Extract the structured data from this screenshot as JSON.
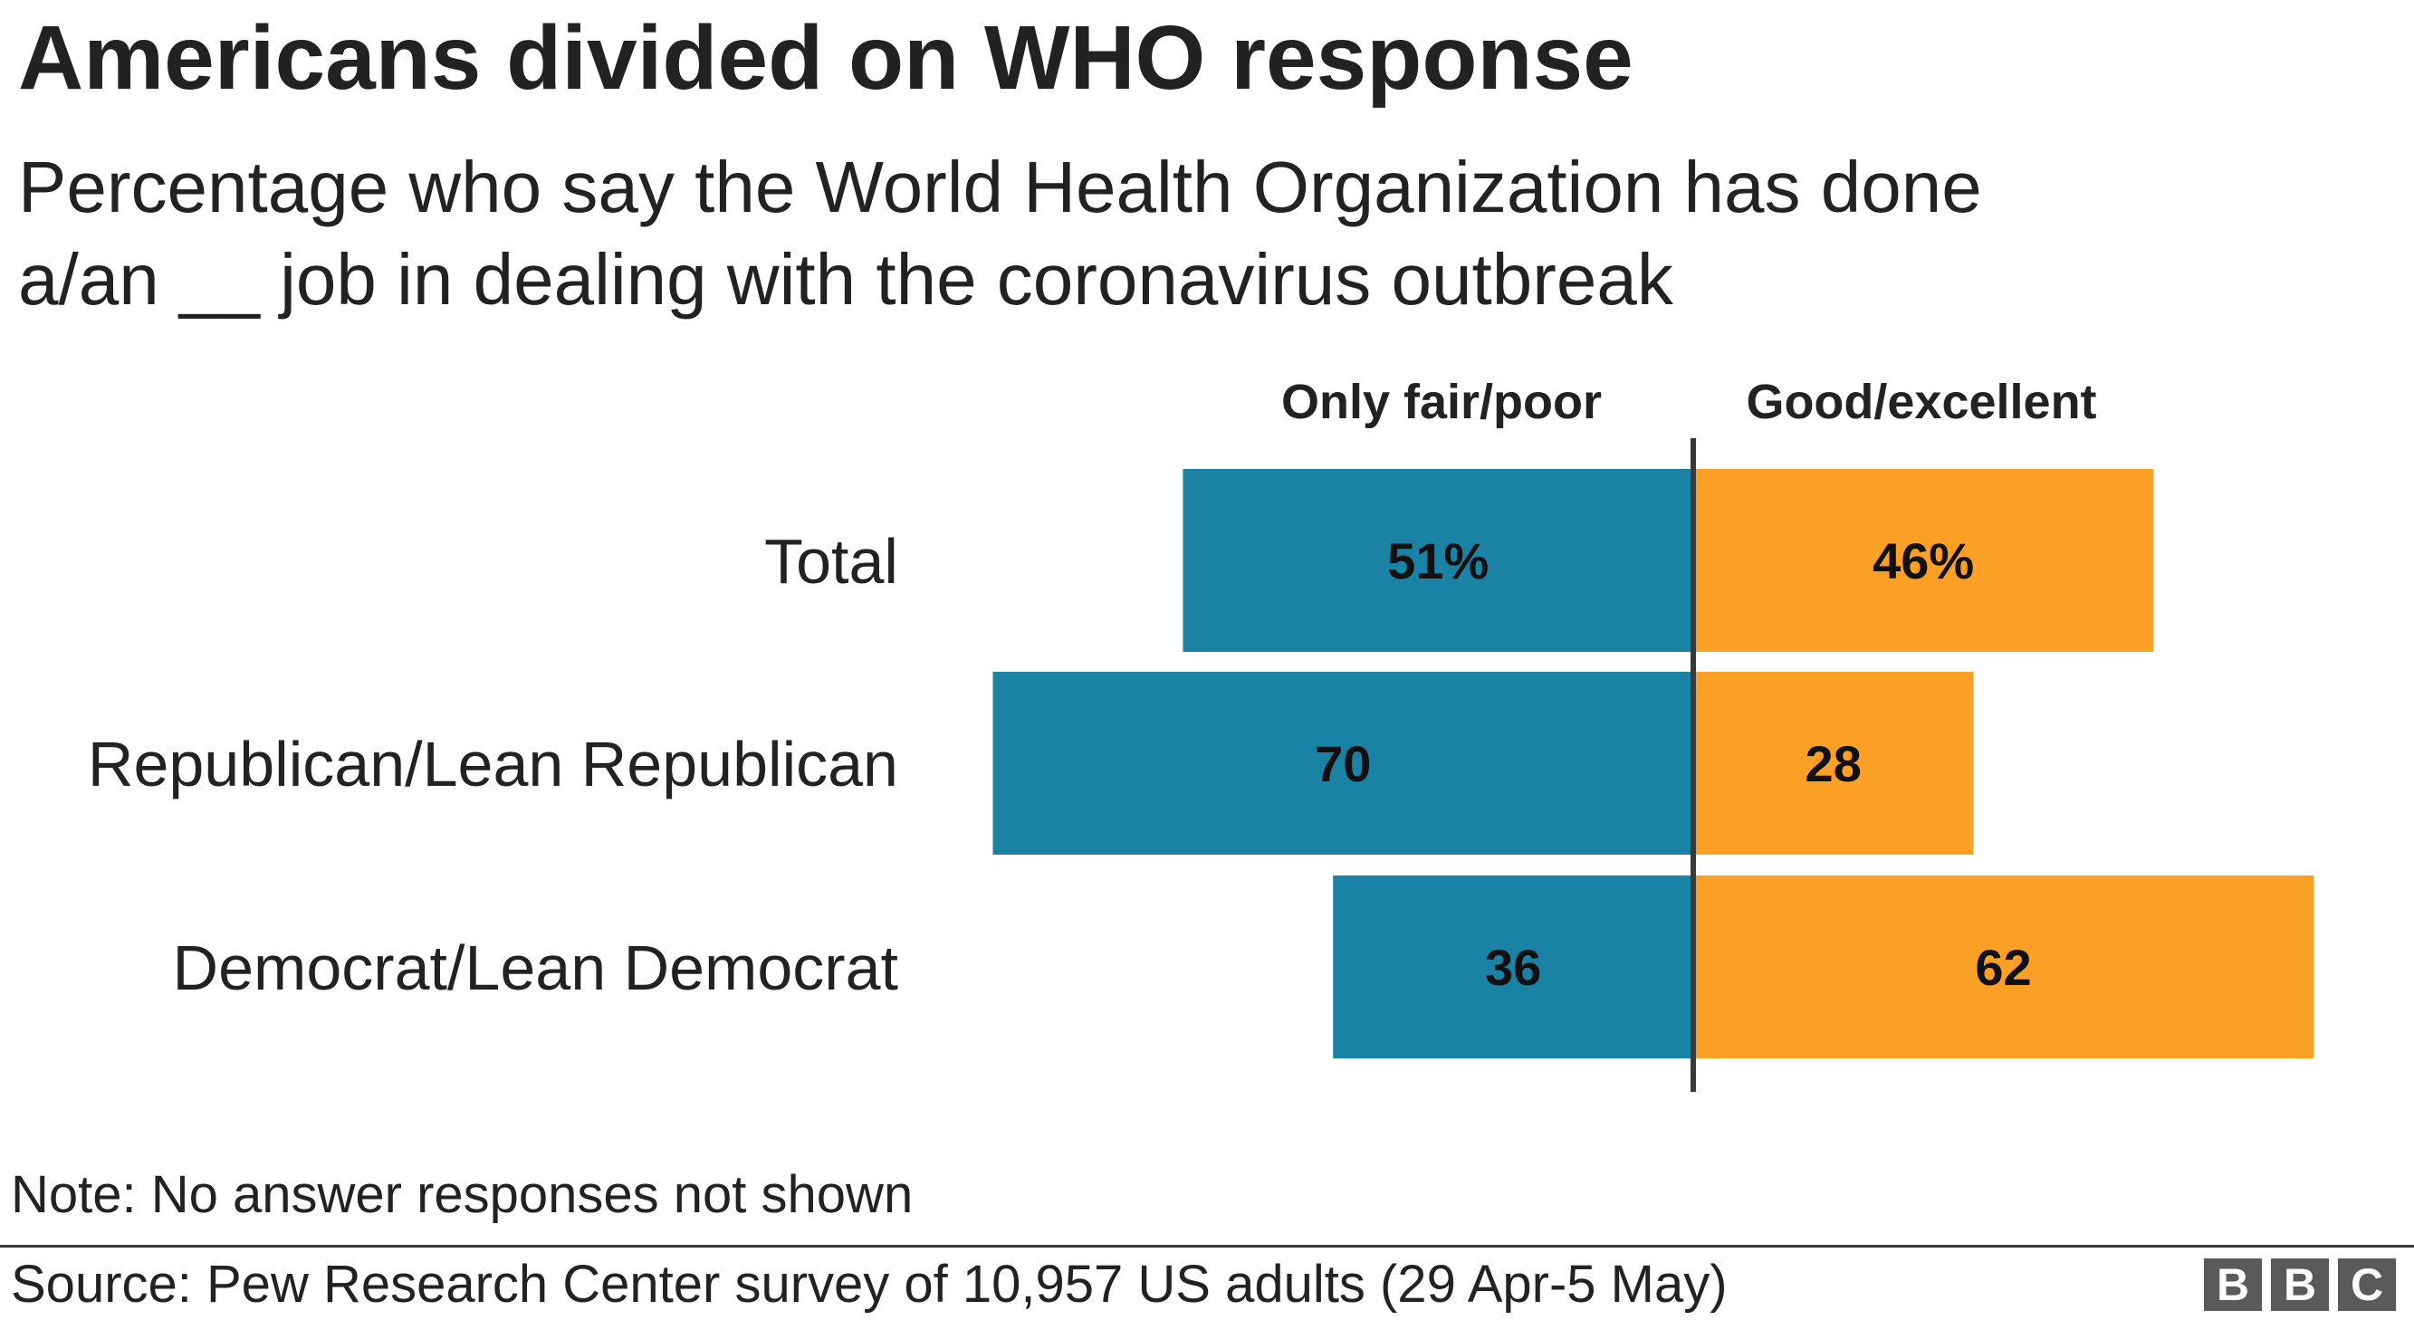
{
  "title": "Americans divided on WHO response",
  "subtitle_lines": [
    "Percentage who say the World Health Organization has done",
    "a/an __ job in dealing with the coronavirus outbreak"
  ],
  "note": "Note: No answer responses not shown",
  "source": "Source: Pew Research Center survey of 10,957 US adults (29 Apr-5 May)",
  "logo": {
    "letters": [
      "B",
      "B",
      "C"
    ]
  },
  "colors": {
    "negative": "#1a82a4",
    "positive": "#fba024",
    "axis": "#3a3a3a",
    "text": "#222222"
  },
  "chart_data": {
    "type": "bar",
    "orientation": "horizontal-diverging",
    "categories": [
      "Total",
      "Republican/Lean Republican",
      "Democrat/Lean Democrat"
    ],
    "series": [
      {
        "name": "Only fair/poor",
        "values": [
          51,
          70,
          36
        ],
        "labels": [
          "51%",
          "70",
          "36"
        ],
        "direction": "left"
      },
      {
        "name": "Good/excellent",
        "values": [
          46,
          28,
          62
        ],
        "labels": [
          "46%",
          "28",
          "62"
        ],
        "direction": "right"
      }
    ],
    "unit": "%",
    "grid": false
  }
}
